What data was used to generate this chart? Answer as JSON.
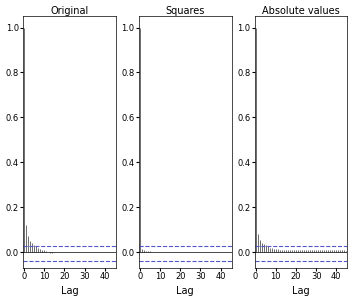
{
  "titles": [
    "Original",
    "Squares",
    "Absolute values"
  ],
  "xlabel": "Lag",
  "ylim": [
    -0.07,
    1.05
  ],
  "yticks": [
    0.0,
    0.2,
    0.4,
    0.6,
    0.8,
    1.0
  ],
  "xlim": [
    -0.5,
    45.5
  ],
  "xticks": [
    0,
    10,
    20,
    30,
    40
  ],
  "conf_upper": 0.025,
  "conf_lower": -0.04,
  "bar_color": "#555555",
  "conf_color": "#5555cc",
  "bg_color": "#ffffff",
  "figsize": [
    3.53,
    3.02
  ],
  "dpi": 100,
  "acf_original": [
    1.0,
    0.12,
    0.07,
    0.05,
    0.04,
    0.03,
    0.025,
    0.02,
    0.015,
    0.01,
    0.01,
    0.005,
    0.0,
    -0.005,
    -0.005,
    0.0,
    0.0,
    0.0,
    0.0,
    -0.002,
    0.0,
    0.0,
    0.0,
    0.0,
    0.0,
    0.0,
    0.0,
    0.0,
    0.0,
    0.0,
    0.0,
    0.0,
    0.0,
    0.0,
    0.0,
    0.0,
    0.0,
    0.0,
    0.0,
    0.0,
    0.0,
    0.0,
    0.0,
    0.0,
    0.0,
    0.0
  ],
  "acf_squares": [
    1.0,
    0.015,
    0.008,
    0.006,
    0.004,
    0.003,
    0.002,
    0.001,
    0.001,
    0.001,
    0.001,
    0.0,
    0.0,
    0.0,
    0.0,
    0.0,
    0.0,
    0.0,
    0.0,
    0.0,
    0.0,
    0.0,
    0.0,
    0.0,
    0.0,
    0.0,
    0.0,
    0.0,
    0.0,
    0.0,
    0.0,
    0.0,
    0.0,
    0.0,
    0.0,
    0.0,
    0.0,
    0.0,
    0.0,
    0.0,
    0.0,
    0.0,
    0.0,
    0.0,
    0.0,
    0.0
  ],
  "acf_abs": [
    1.0,
    0.08,
    0.055,
    0.04,
    0.035,
    0.03,
    0.025,
    0.02,
    0.018,
    0.015,
    0.013,
    0.012,
    0.011,
    0.01,
    0.01,
    0.009,
    0.009,
    0.009,
    0.008,
    0.008,
    0.008,
    0.008,
    0.007,
    0.007,
    0.007,
    0.007,
    0.007,
    0.007,
    0.007,
    0.007,
    0.007,
    0.007,
    0.007,
    0.007,
    0.007,
    0.007,
    0.007,
    0.007,
    0.007,
    0.007,
    0.007,
    0.007,
    0.008,
    0.007,
    0.007,
    0.006
  ]
}
